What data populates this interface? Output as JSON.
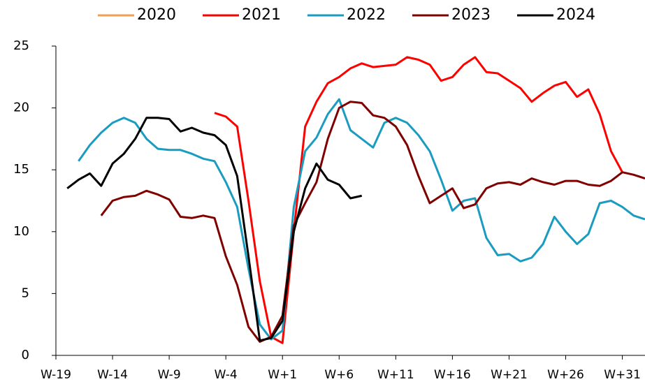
{
  "chart_data": {
    "type": "line",
    "categories": [
      "W-19",
      null,
      null,
      null,
      null,
      "W-14",
      null,
      null,
      null,
      null,
      "W-9",
      null,
      null,
      null,
      null,
      "W-4",
      null,
      null,
      null,
      null,
      "W+1",
      null,
      null,
      null,
      null,
      "W+6",
      null,
      null,
      null,
      null,
      "W+11",
      null,
      null,
      null,
      null,
      "W+16",
      null,
      null,
      null,
      null,
      "W+21",
      null,
      null,
      null,
      null,
      "W+26",
      null,
      null,
      null,
      null,
      "W+31",
      null,
      null
    ],
    "ylim": [
      0,
      25
    ],
    "yticks": [
      0,
      5,
      10,
      15,
      20,
      25
    ],
    "grid": false,
    "legend": "top",
    "series": [
      {
        "name": "2020",
        "color": "#f0a050",
        "values": [
          null,
          null,
          null,
          null,
          null,
          null,
          null,
          null,
          null,
          null,
          null,
          null,
          null,
          null,
          null,
          null,
          null,
          null,
          null,
          null,
          null,
          null,
          null,
          null,
          null,
          null,
          null,
          null,
          null,
          null,
          null,
          null,
          null,
          null,
          null,
          null,
          null,
          null,
          null,
          null,
          null,
          null,
          null,
          null,
          null,
          null,
          null,
          null,
          null,
          null,
          null,
          null,
          null
        ]
      },
      {
        "name": "2021",
        "color": "#ff0000",
        "values": [
          null,
          null,
          null,
          null,
          null,
          null,
          null,
          null,
          null,
          null,
          null,
          null,
          null,
          null,
          19.6,
          19.3,
          18.5,
          12.5,
          6.0,
          1.5,
          1.0,
          10.0,
          18.5,
          20.5,
          22.0,
          22.5,
          23.2,
          23.6,
          23.3,
          23.4,
          23.5,
          24.1,
          23.9,
          23.5,
          22.2,
          22.5,
          23.5,
          24.1,
          22.9,
          22.8,
          22.2,
          21.6,
          20.5,
          21.2,
          21.8,
          22.1,
          20.9,
          21.5,
          19.5,
          16.5,
          14.8,
          null,
          null
        ]
      },
      {
        "name": "2022",
        "color": "#1a9cc0",
        "values": [
          null,
          null,
          15.7,
          17.0,
          18.0,
          18.8,
          19.2,
          18.8,
          17.5,
          16.7,
          16.6,
          16.6,
          16.3,
          15.9,
          15.7,
          14.0,
          12.0,
          7.0,
          2.5,
          1.3,
          2.0,
          12.0,
          16.5,
          17.6,
          19.5,
          20.7,
          18.2,
          17.5,
          16.8,
          18.8,
          19.2,
          18.8,
          17.8,
          16.5,
          14.2,
          11.7,
          12.5,
          12.7,
          9.5,
          8.1,
          8.2,
          7.6,
          7.9,
          9.0,
          11.2,
          10.0,
          9.0,
          9.8,
          12.3,
          12.5,
          12.0,
          11.3,
          11.0
        ]
      },
      {
        "name": "2023",
        "color": "#800000",
        "values": [
          null,
          null,
          null,
          null,
          11.3,
          12.5,
          12.8,
          12.9,
          13.3,
          13.0,
          12.6,
          11.2,
          11.1,
          11.3,
          11.1,
          8.0,
          5.7,
          2.3,
          1.1,
          1.5,
          3.2,
          10.5,
          12.3,
          14.0,
          17.5,
          20.0,
          20.5,
          20.4,
          19.4,
          19.2,
          18.5,
          17.0,
          14.5,
          12.3,
          12.9,
          13.5,
          11.9,
          12.2,
          13.5,
          13.9,
          14.0,
          13.8,
          14.3,
          14.0,
          13.8,
          14.1,
          14.1,
          13.8,
          13.7,
          14.1,
          14.8,
          14.6,
          14.3
        ]
      },
      {
        "name": "2024",
        "color": "#000000",
        "values": [
          null,
          13.5,
          14.2,
          14.7,
          13.7,
          15.5,
          16.3,
          17.5,
          19.2,
          19.2,
          19.1,
          18.1,
          18.4,
          18.0,
          17.8,
          17.0,
          14.5,
          8.0,
          1.2,
          1.4,
          2.8,
          10.0,
          13.5,
          15.5,
          14.2,
          13.8,
          12.7,
          12.9,
          null,
          null,
          null,
          null,
          null,
          null,
          null,
          null,
          null,
          null,
          null,
          null,
          null,
          null,
          null,
          null,
          null,
          null,
          null,
          null,
          null,
          null,
          null,
          null,
          null
        ]
      }
    ]
  }
}
